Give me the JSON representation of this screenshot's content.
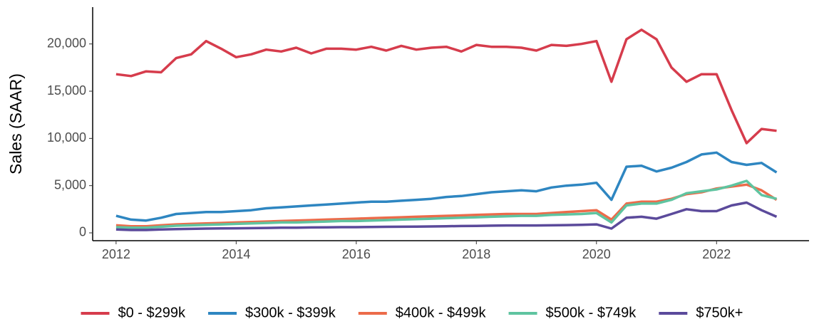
{
  "chart_data": {
    "type": "line",
    "ylabel": "Sales (SAAR)",
    "x": [
      2012,
      2012.25,
      2012.5,
      2012.75,
      2013,
      2013.25,
      2013.5,
      2013.75,
      2014,
      2014.25,
      2014.5,
      2014.75,
      2015,
      2015.25,
      2015.5,
      2015.75,
      2016,
      2016.25,
      2016.5,
      2016.75,
      2017,
      2017.25,
      2017.5,
      2017.75,
      2018,
      2018.25,
      2018.5,
      2018.75,
      2019,
      2019.25,
      2019.5,
      2019.75,
      2020,
      2020.25,
      2020.5,
      2020.75,
      2021,
      2021.25,
      2021.5,
      2021.75,
      2022,
      2022.25,
      2022.5,
      2022.75,
      2023
    ],
    "series": [
      {
        "name": "$0 - $299k",
        "color": "#d63c4c",
        "values": [
          16800,
          16600,
          17100,
          17000,
          18500,
          18900,
          20300,
          19500,
          18600,
          18900,
          19400,
          19200,
          19600,
          19000,
          19500,
          19500,
          19400,
          19700,
          19300,
          19800,
          19400,
          19600,
          19700,
          19200,
          19900,
          19700,
          19700,
          19600,
          19300,
          19900,
          19800,
          20000,
          20300,
          16000,
          20500,
          21500,
          20500,
          17500,
          16000,
          16800,
          16800,
          13000,
          9500,
          11000,
          10800
        ]
      },
      {
        "name": "$300k - $399k",
        "color": "#2e86c1",
        "values": [
          1800,
          1400,
          1300,
          1600,
          2000,
          2100,
          2200,
          2200,
          2300,
          2400,
          2600,
          2700,
          2800,
          2900,
          3000,
          3100,
          3200,
          3300,
          3300,
          3400,
          3500,
          3600,
          3800,
          3900,
          4100,
          4300,
          4400,
          4500,
          4400,
          4800,
          5000,
          5100,
          5300,
          3500,
          7000,
          7100,
          6500,
          6900,
          7500,
          8300,
          8500,
          7500,
          7200,
          7400,
          6400
        ]
      },
      {
        "name": "$400k - $499k",
        "color": "#ec6b4a",
        "values": [
          800,
          700,
          700,
          800,
          900,
          950,
          1000,
          1050,
          1100,
          1150,
          1200,
          1250,
          1300,
          1350,
          1400,
          1450,
          1500,
          1550,
          1600,
          1650,
          1700,
          1750,
          1800,
          1850,
          1900,
          1950,
          2000,
          2000,
          2000,
          2100,
          2200,
          2300,
          2400,
          1400,
          3100,
          3300,
          3300,
          3600,
          4100,
          4300,
          4700,
          4900,
          5100,
          4500,
          3500
        ]
      },
      {
        "name": "$500k - $749k",
        "color": "#5fc4a0",
        "values": [
          600,
          550,
          550,
          650,
          750,
          800,
          850,
          900,
          950,
          1000,
          1050,
          1100,
          1100,
          1150,
          1200,
          1250,
          1250,
          1300,
          1350,
          1400,
          1450,
          1500,
          1550,
          1600,
          1650,
          1700,
          1750,
          1800,
          1800,
          1900,
          1950,
          2000,
          2100,
          1100,
          2900,
          3100,
          3100,
          3500,
          4200,
          4400,
          4600,
          5000,
          5500,
          4000,
          3600
        ]
      },
      {
        "name": "$750k+",
        "color": "#5b4a9b",
        "values": [
          350,
          300,
          300,
          350,
          400,
          420,
          450,
          470,
          480,
          500,
          520,
          540,
          550,
          570,
          590,
          600,
          600,
          620,
          640,
          650,
          660,
          680,
          700,
          720,
          740,
          760,
          780,
          780,
          780,
          800,
          820,
          850,
          900,
          450,
          1600,
          1700,
          1500,
          2000,
          2500,
          2300,
          2300,
          2900,
          3200,
          2400,
          1700
        ]
      }
    ],
    "xlim": [
      2011.61,
      2023.54
    ],
    "xticks": [
      2012,
      2014,
      2016,
      2018,
      2020,
      2022
    ],
    "ylim": [
      -830,
      23900
    ],
    "yticks": [
      0,
      {
        "value": 5000,
        "label": "5,000"
      },
      {
        "value": 10000,
        "label": "10,000"
      },
      {
        "value": 15000,
        "label": "15,000"
      },
      {
        "value": 20000,
        "label": "20,000"
      }
    ],
    "legend": "bottom"
  }
}
